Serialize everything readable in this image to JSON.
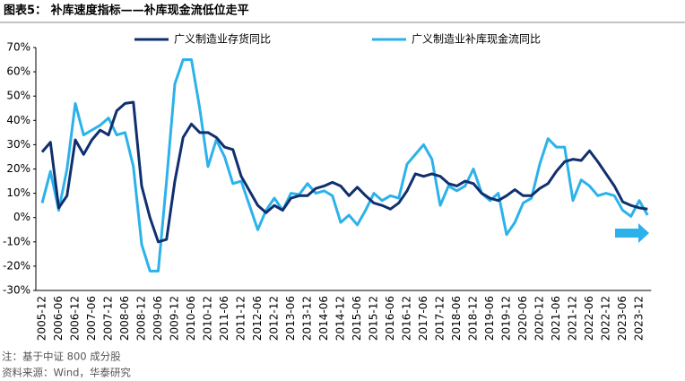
{
  "chart_data": {
    "type": "line",
    "title": "图表5：  补库速度指标——补库现金流低位走平",
    "notes": [
      "注：基于中证 800 成分股",
      "资料来源：Wind，华泰研究"
    ],
    "categories": [
      "2005-12",
      null,
      "2006-06",
      null,
      "2006-12",
      null,
      "2007-06",
      null,
      "2007-12",
      null,
      "2008-06",
      null,
      "2008-12",
      null,
      "2009-06",
      null,
      "2009-12",
      null,
      "2010-06",
      null,
      "2010-12",
      null,
      "2011-06",
      null,
      "2011-12",
      null,
      "2012-06",
      null,
      "2012-12",
      null,
      "2013-06",
      null,
      "2013-12",
      null,
      "2014-06",
      null,
      "2014-12",
      null,
      "2015-06",
      null,
      "2015-12",
      null,
      "2016-06",
      null,
      "2016-12",
      null,
      "2017-06",
      null,
      "2017-12",
      null,
      "2018-06",
      null,
      "2018-12",
      null,
      "2019-06",
      null,
      "2019-12",
      null,
      "2020-06",
      null,
      "2020-12",
      null,
      "2021-06",
      null,
      "2021-12",
      null,
      "2022-06",
      null,
      "2022-12",
      null,
      "2023-06",
      null,
      "2023-12",
      null
    ],
    "series": [
      {
        "name": "广义制造业存货同比",
        "color": "#0f2f6e",
        "values": [
          27,
          31,
          4,
          9,
          32,
          26,
          32,
          36,
          34,
          44,
          47,
          47.5,
          13,
          0,
          -10,
          -9,
          15,
          33,
          38.5,
          35,
          35,
          33,
          29,
          28,
          17,
          11,
          5,
          2,
          5,
          3,
          8,
          9,
          9,
          12,
          13,
          14.5,
          13,
          9,
          12.5,
          9,
          6,
          5,
          3.5,
          6,
          11,
          18,
          17,
          18,
          17,
          14,
          13,
          15,
          14,
          10,
          8,
          7,
          9,
          11.5,
          9,
          9,
          12,
          14,
          19,
          23,
          24,
          23.5,
          27.5,
          23,
          18,
          13,
          6.5,
          5,
          4,
          3.5
        ]
      },
      {
        "name": "广义制造业补库现金流同比",
        "color": "#2cb2ea",
        "values": [
          6,
          19,
          3,
          20,
          47,
          34,
          36,
          38,
          41,
          34,
          35,
          21,
          -11,
          -22,
          -22,
          15,
          55,
          65,
          65,
          45,
          21,
          32,
          25,
          14,
          15,
          5,
          -5,
          3,
          8,
          3,
          10,
          9.5,
          14,
          10,
          11,
          9,
          -2,
          1,
          -3,
          3,
          10,
          7,
          9,
          8,
          22,
          26,
          30,
          24,
          5,
          13,
          11,
          13,
          20,
          10,
          7,
          10,
          -7,
          -2,
          6,
          8,
          22,
          32.5,
          29,
          29,
          7,
          15.5,
          13,
          9,
          10,
          9,
          3,
          0.5,
          7,
          1
        ]
      }
    ],
    "ylim": [
      -30,
      70
    ],
    "yticks": [
      {
        "value": -30,
        "label": "-30%"
      },
      {
        "value": -20,
        "label": "-20%"
      },
      {
        "value": -10,
        "label": "-10%"
      },
      {
        "value": 0,
        "label": "0%"
      },
      {
        "value": 10,
        "label": "10%"
      },
      {
        "value": 20,
        "label": "20%"
      },
      {
        "value": 30,
        "label": "30%"
      },
      {
        "value": 40,
        "label": "40%"
      },
      {
        "value": 50,
        "label": "50%"
      },
      {
        "value": 60,
        "label": "60%"
      },
      {
        "value": 70,
        "label": "70%"
      }
    ],
    "grid": false
  }
}
